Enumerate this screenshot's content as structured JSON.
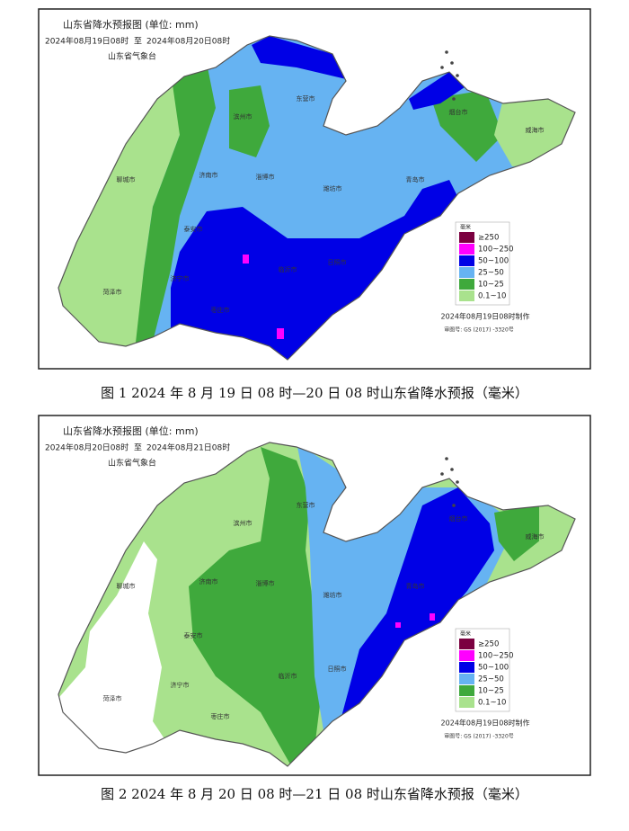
{
  "figures": [
    {
      "map_title": "山东省降水预报图 (单位: mm)",
      "period_start": "2024年08月19日08时",
      "period_sep": "至",
      "period_end": "2024年08月20日08时",
      "agency": "山东省气象台",
      "legend_title": "毫米",
      "legend": [
        {
          "label": "≥250",
          "color": "#7b0040"
        },
        {
          "label": "100~250",
          "color": "#ff00ff"
        },
        {
          "label": "50~100",
          "color": "#0000e6"
        },
        {
          "label": "25~50",
          "color": "#66b3f2"
        },
        {
          "label": "10~25",
          "color": "#3fa93c"
        },
        {
          "label": "0.1~10",
          "color": "#a9e28d"
        }
      ],
      "cities": [
        "滨州市",
        "东营市",
        "烟台市",
        "威海市",
        "聊城市",
        "济南市",
        "淄博市",
        "潍坊市",
        "青岛市",
        "泰安市",
        "日照市",
        "临沂市",
        "济宁市",
        "菏泽市",
        "枣庄市"
      ],
      "made": "2024年08月19日08时制作",
      "approval": "审图号: GS (2017) -3320号",
      "caption": "图 1 2024 年 8 月 19 日 08 时—20 日 08 时山东省降水预报（毫米）"
    },
    {
      "map_title": "山东省降水预报图 (单位: mm)",
      "period_start": "2024年08月20日08时",
      "period_sep": "至",
      "period_end": "2024年08月21日08时",
      "agency": "山东省气象台",
      "legend_title": "毫米",
      "legend": [
        {
          "label": "≥250",
          "color": "#7b0040"
        },
        {
          "label": "100~250",
          "color": "#ff00ff"
        },
        {
          "label": "50~100",
          "color": "#0000e6"
        },
        {
          "label": "25~50",
          "color": "#66b3f2"
        },
        {
          "label": "10~25",
          "color": "#3fa93c"
        },
        {
          "label": "0.1~10",
          "color": "#a9e28d"
        }
      ],
      "cities": [
        "滨州市",
        "东营市",
        "烟台市",
        "威海市",
        "聊城市",
        "济南市",
        "淄博市",
        "潍坊市",
        "青岛市",
        "泰安市",
        "日照市",
        "临沂市",
        "济宁市",
        "菏泽市",
        "枣庄市"
      ],
      "made": "2024年08月19日08时制作",
      "approval": "审图号: GS (2017) -3320号",
      "caption": "图 2 2024 年 8 月 20 日 08 时—21 日 08 时山东省降水预报（毫米）"
    }
  ]
}
